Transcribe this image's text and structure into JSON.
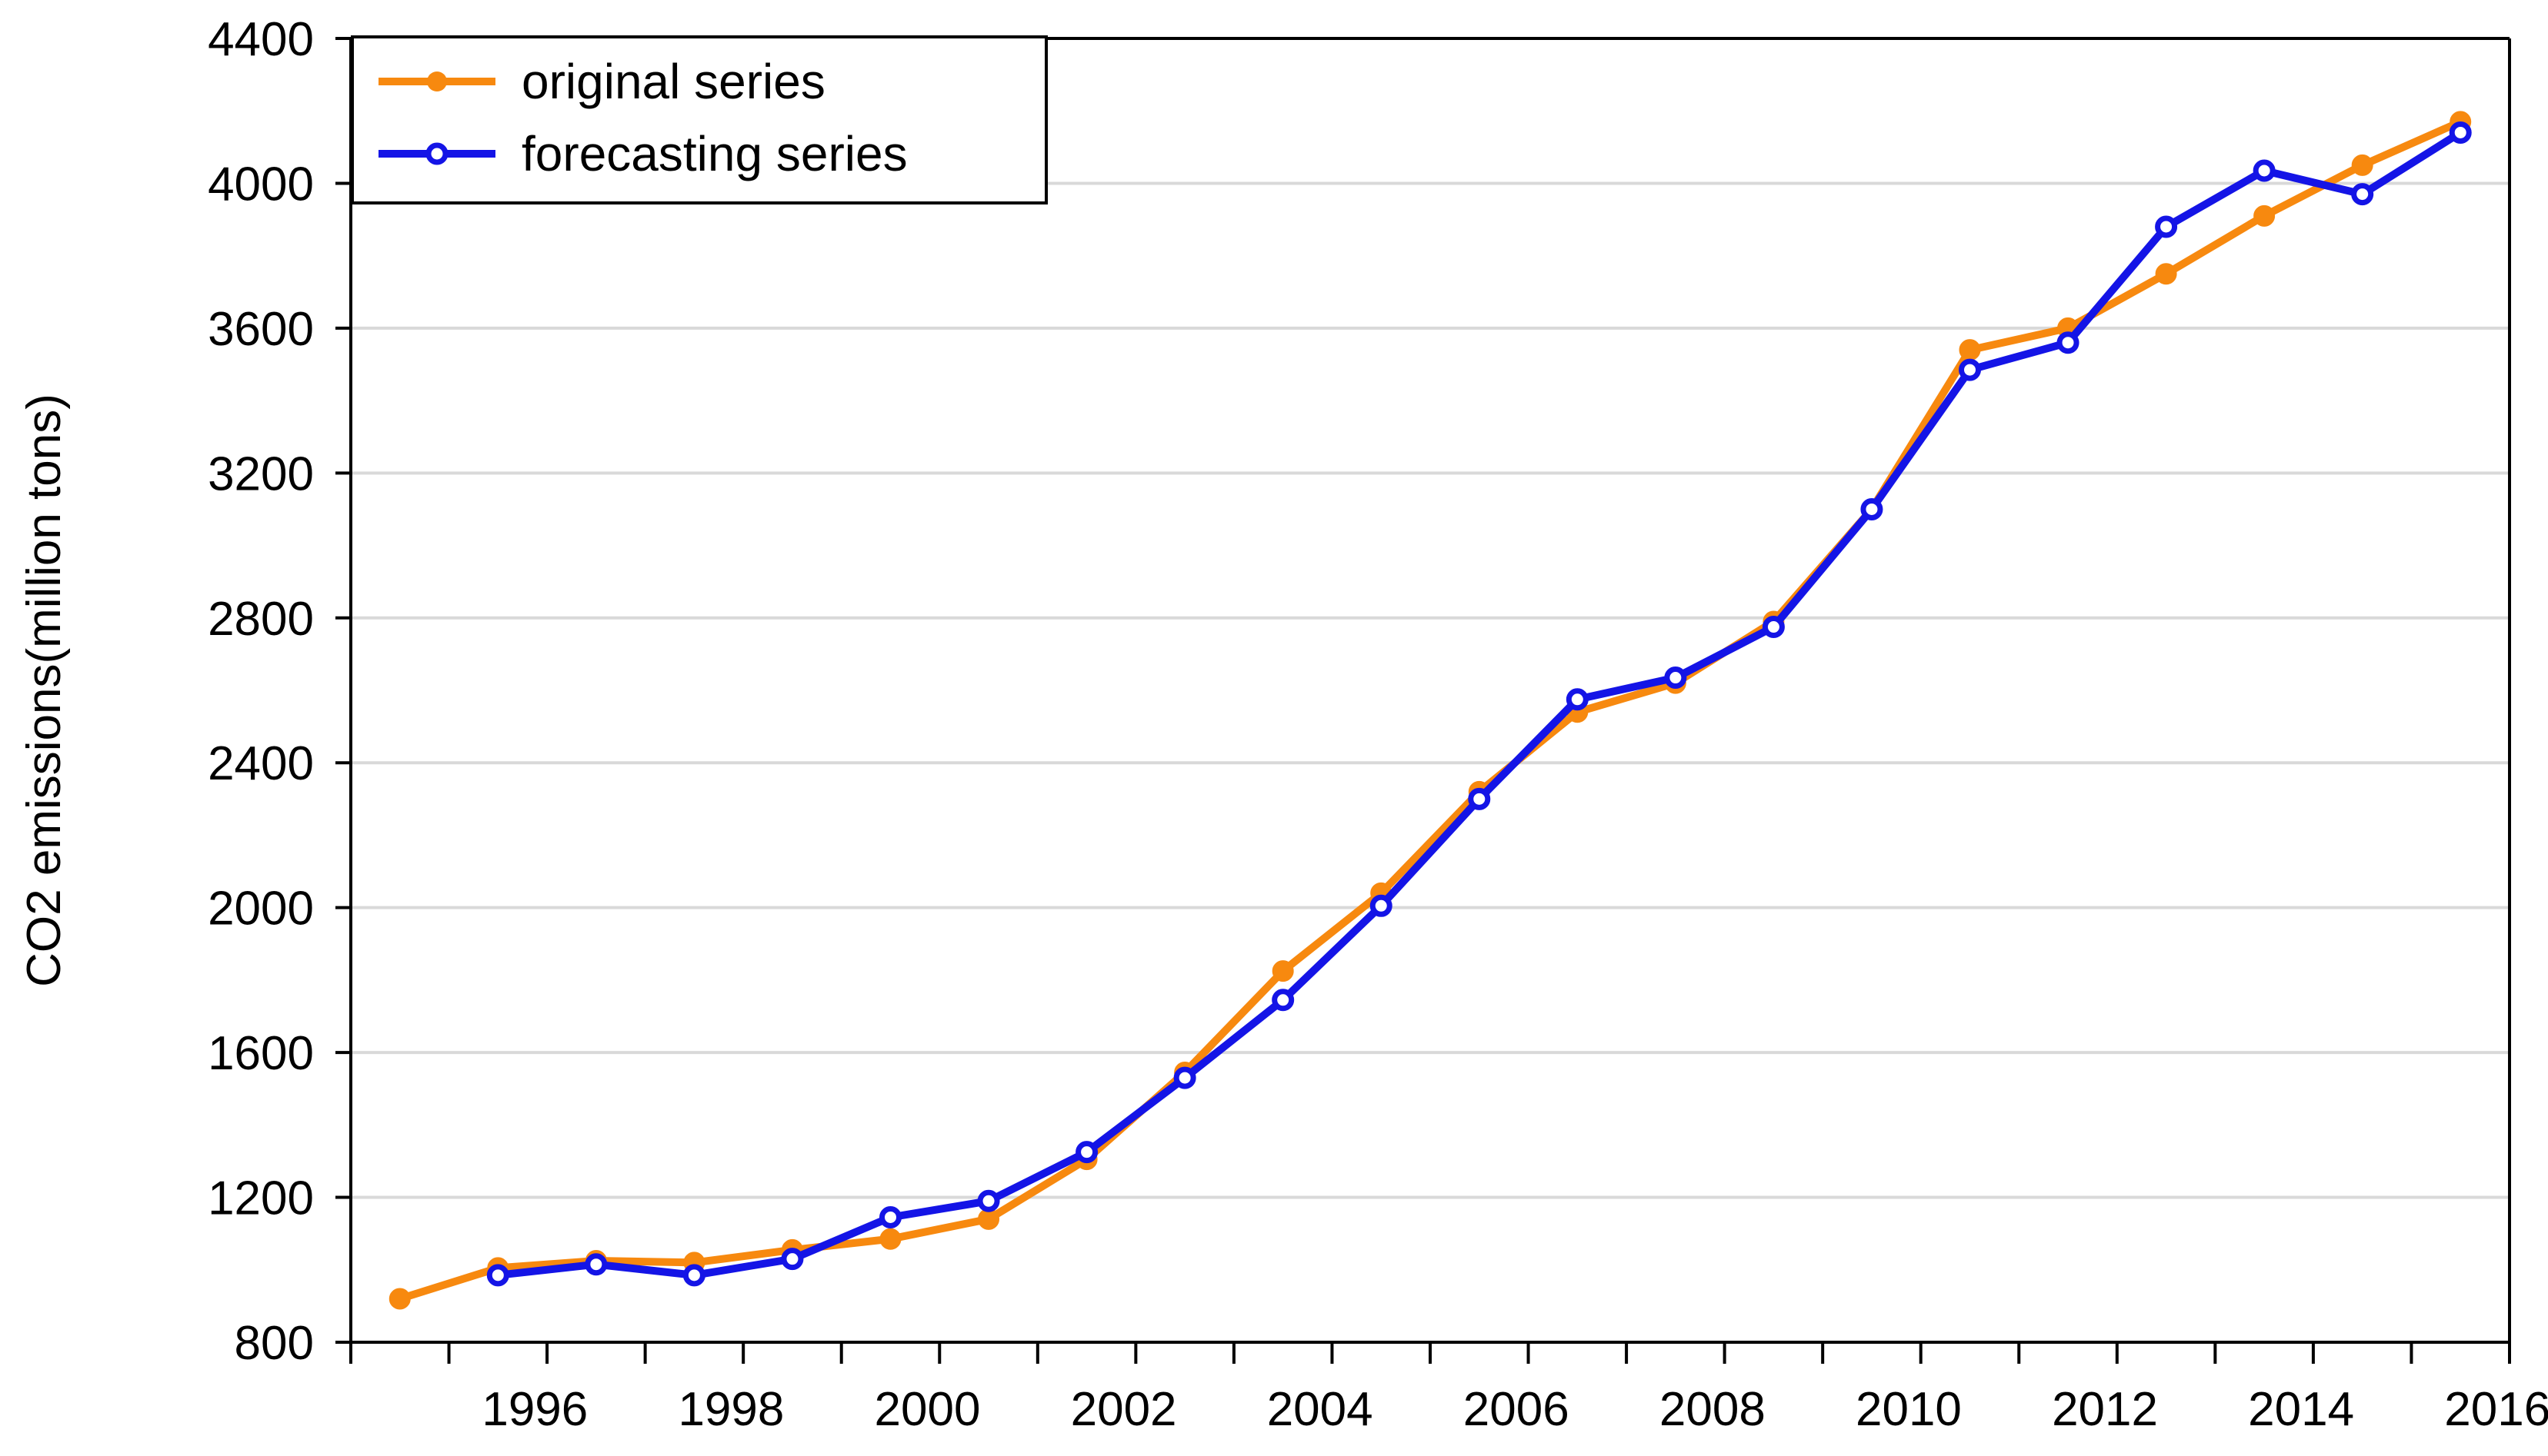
{
  "colors": {
    "original": "#F7890F",
    "forecast": "#1414E6",
    "grid": "#D9D9D9",
    "axis": "#000000"
  },
  "chart_data": {
    "type": "line",
    "title": "",
    "xlabel": "",
    "ylabel": "CO2 emissions(million tons)",
    "xlim": [
      1994.5,
      2016.5
    ],
    "ylim": [
      800,
      4400
    ],
    "yticks": [
      800,
      1200,
      1600,
      2000,
      2400,
      2800,
      3200,
      3600,
      4000,
      4400
    ],
    "xtick_labels": [
      "1996",
      "1998",
      "2000",
      "2002",
      "2004",
      "2006",
      "2008",
      "2010",
      "2012",
      "2014",
      "2016"
    ],
    "grid": "horizontal",
    "legend_position": "top-left",
    "series": [
      {
        "name": "original series",
        "x": [
          1995,
          1996,
          1997,
          1998,
          1999,
          2000,
          2001,
          2002,
          2003,
          2004,
          2005,
          2006,
          2007,
          2008,
          2009,
          2010,
          2011,
          2012,
          2013,
          2014,
          2015,
          2016
        ],
        "values": [
          920,
          1005,
          1025,
          1020,
          1055,
          1085,
          1140,
          1305,
          1545,
          1825,
          2040,
          2320,
          2540,
          2620,
          2790,
          3100,
          3540,
          3600,
          3750,
          3910,
          4050,
          4170
        ]
      },
      {
        "name": "forecasting series",
        "x": [
          1996,
          1997,
          1998,
          1999,
          2000,
          2001,
          2002,
          2003,
          2004,
          2005,
          2006,
          2007,
          2008,
          2009,
          2010,
          2011,
          2012,
          2013,
          2014,
          2015,
          2016
        ],
        "values": [
          985,
          1015,
          985,
          1030,
          1145,
          1190,
          1325,
          1530,
          1745,
          2005,
          2300,
          2575,
          2635,
          2775,
          3100,
          3485,
          3560,
          3880,
          4035,
          3970,
          4140
        ]
      }
    ]
  }
}
